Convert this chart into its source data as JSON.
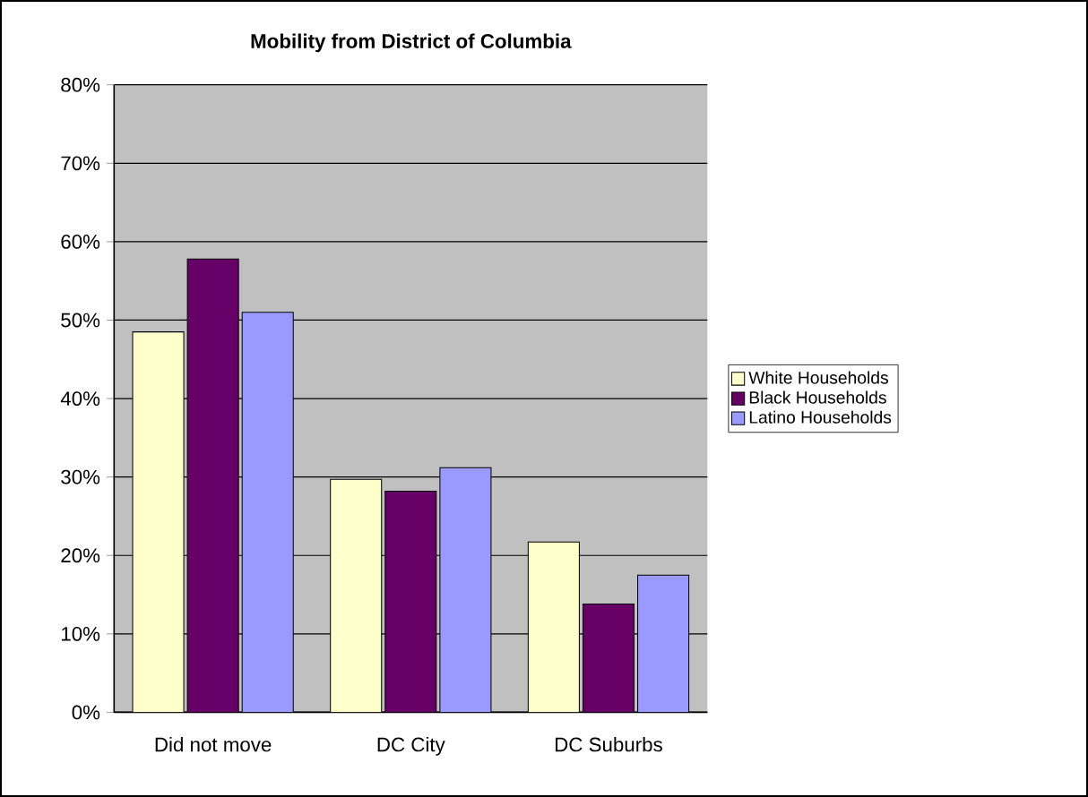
{
  "chart_data": {
    "type": "bar",
    "title": "Mobility from District of Columbia",
    "categories": [
      "Did not move",
      "DC City",
      "DC Suburbs"
    ],
    "series": [
      {
        "name": "White Households",
        "color": "#ffffcc",
        "values": [
          48.5,
          29.7,
          21.7
        ]
      },
      {
        "name": "Black Households",
        "color": "#660066",
        "values": [
          57.8,
          28.2,
          13.8
        ]
      },
      {
        "name": "Latino Households",
        "color": "#9999ff",
        "values": [
          51.0,
          31.2,
          17.5
        ]
      }
    ],
    "ylim": [
      0,
      80
    ],
    "yticks": [
      {
        "value": 0,
        "label": "0%"
      },
      {
        "value": 10,
        "label": "10%"
      },
      {
        "value": 20,
        "label": "20%"
      },
      {
        "value": 30,
        "label": "30%"
      },
      {
        "value": 40,
        "label": "40%"
      },
      {
        "value": 50,
        "label": "50%"
      },
      {
        "value": 60,
        "label": "60%"
      },
      {
        "value": 70,
        "label": "70%"
      },
      {
        "value": 80,
        "label": "80%"
      }
    ],
    "grid": "y",
    "legend": "right"
  }
}
